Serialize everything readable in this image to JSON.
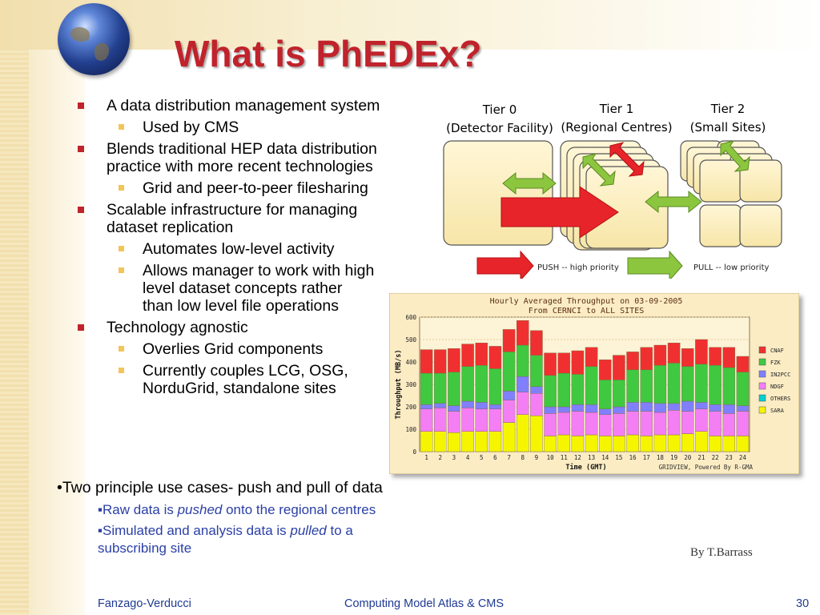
{
  "slide": {
    "title": "What is PhEDEx?",
    "bullets": [
      {
        "text": "A data distribution management system",
        "subs": [
          "Used by CMS"
        ]
      },
      {
        "text": "Blends traditional HEP data distribution practice with more recent technologies",
        "subs": [
          "Grid and peer-to-peer filesharing"
        ]
      },
      {
        "text": "Scalable infrastructure for managing dataset replication",
        "subs": [
          "Automates low-level activity",
          "Allows manager to work with high level dataset concepts rather than low level file operations"
        ]
      },
      {
        "text": "Technology agnostic",
        "subs": [
          "Overlies Grid components",
          "Currently couples LCG, OSG, NorduGrid, standalone sites"
        ]
      }
    ],
    "use_cases": "•Two principle use cases- push and pull of data",
    "sub1": {
      "prefix": "▪Raw data is ",
      "em": "pushed",
      "suffix": " onto the regional centres"
    },
    "sub2": {
      "prefix": "▪Simulated and analysis data is ",
      "em": "pulled",
      "suffix": " to a subscribing site"
    },
    "byline": "By T.Barrass",
    "footer": {
      "left": "Fanzago-Verducci",
      "center": "Computing Model Atlas & CMS",
      "right": "30"
    }
  },
  "diagram": {
    "tier0": [
      "Tier 0",
      "(Detector Facility)"
    ],
    "tier1": [
      "Tier 1",
      "(Regional Centres)"
    ],
    "tier2": [
      "Tier 2",
      "(Small Sites)"
    ],
    "push_label": "PUSH -- high priority",
    "pull_label": "PULL -- low priority",
    "push_color": "#e8242b",
    "pull_color": "#8cc63f",
    "box_color": "#fdf0c4"
  },
  "chart_data": {
    "type": "bar",
    "stacked": true,
    "title": "Hourly Averaged Throughput on 03-09-2005",
    "subtitle": "From CERNCI to ALL SITES",
    "xlabel": "Time (GMT)",
    "ylabel": "Throughput (MB/s)",
    "ylim": [
      0,
      600
    ],
    "yticks": [
      0,
      100,
      200,
      300,
      400,
      500,
      600
    ],
    "footer_note": "GRIDVIEW, Powered By R-GMA",
    "categories": [
      "1",
      "2",
      "3",
      "4",
      "5",
      "6",
      "7",
      "8",
      "9",
      "10",
      "11",
      "12",
      "13",
      "14",
      "15",
      "16",
      "17",
      "18",
      "19",
      "20",
      "21",
      "22",
      "23",
      "24"
    ],
    "series": [
      {
        "name": "SARA",
        "color": "#f5f500",
        "values": [
          90,
          90,
          85,
          90,
          90,
          90,
          130,
          165,
          160,
          70,
          75,
          70,
          75,
          70,
          70,
          75,
          70,
          75,
          75,
          80,
          90,
          70,
          70,
          70
        ]
      },
      {
        "name": "OTHERS",
        "color": "#00d0d0",
        "values": [
          0,
          0,
          0,
          0,
          0,
          0,
          0,
          0,
          0,
          0,
          0,
          0,
          0,
          0,
          0,
          0,
          0,
          0,
          0,
          0,
          0,
          0,
          0,
          0
        ]
      },
      {
        "name": "NDGF",
        "color": "#f47ef4",
        "values": [
          100,
          105,
          95,
          105,
          100,
          100,
          100,
          100,
          100,
          100,
          100,
          110,
          100,
          95,
          100,
          105,
          110,
          100,
          110,
          100,
          100,
          110,
          100,
          110
        ]
      },
      {
        "name": "IN2PCC",
        "color": "#8080ff",
        "values": [
          20,
          20,
          25,
          30,
          30,
          20,
          40,
          70,
          30,
          30,
          25,
          30,
          35,
          25,
          30,
          40,
          40,
          40,
          30,
          45,
          30,
          30,
          40,
          25
        ]
      },
      {
        "name": "FZK",
        "color": "#40c840",
        "values": [
          140,
          135,
          150,
          155,
          165,
          160,
          175,
          140,
          140,
          140,
          150,
          135,
          170,
          130,
          120,
          145,
          145,
          170,
          180,
          155,
          170,
          175,
          165,
          150
        ]
      },
      {
        "name": "CNAF",
        "color": "#f03030",
        "values": [
          105,
          105,
          105,
          100,
          100,
          100,
          100,
          110,
          110,
          100,
          90,
          105,
          85,
          90,
          110,
          80,
          100,
          90,
          90,
          80,
          110,
          80,
          90,
          70
        ]
      }
    ]
  }
}
